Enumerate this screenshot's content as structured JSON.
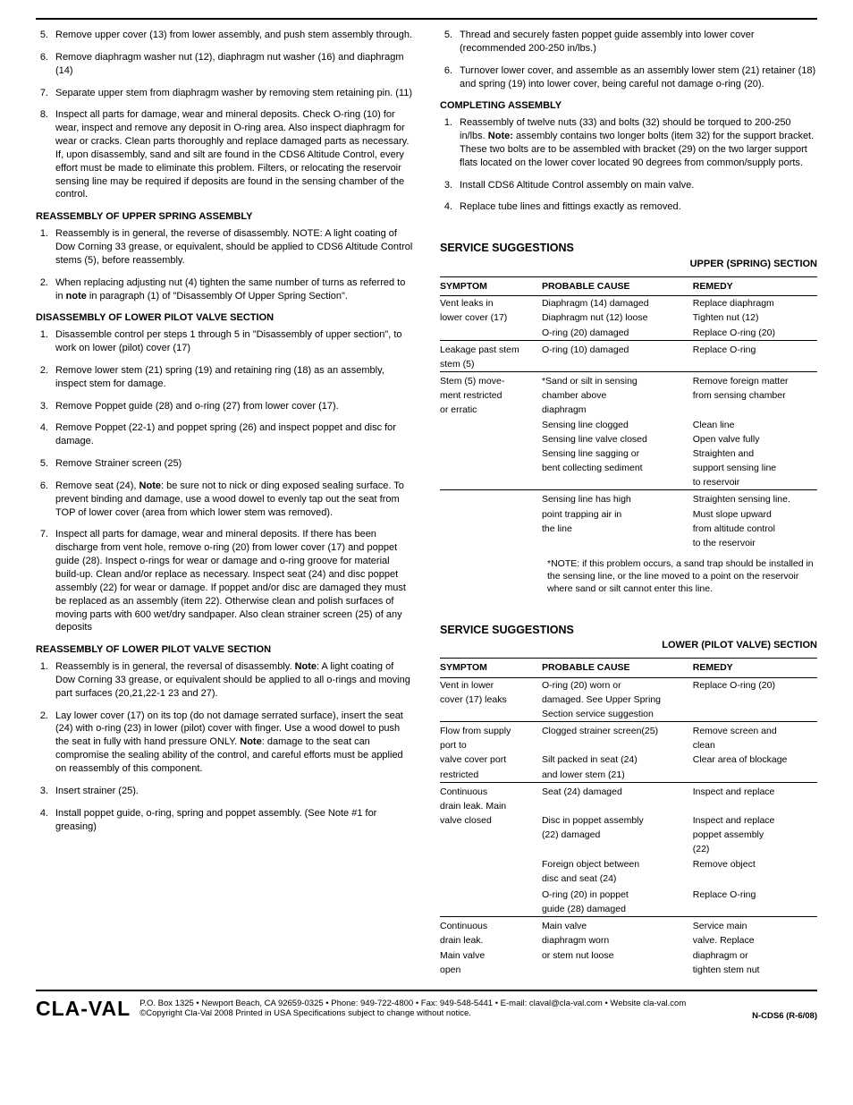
{
  "left": {
    "items1": [
      {
        "n": "5.",
        "t": "Remove upper cover (13) from lower assembly, and push stem assembly through."
      },
      {
        "n": "6.",
        "t": "Remove diaphragm washer nut (12), diaphragm nut washer (16) and diaphragm (14)"
      },
      {
        "n": "7.",
        "t": "Separate upper stem from diaphragm washer by removing stem retaining pin. (11)"
      },
      {
        "n": "8.",
        "t": "Inspect all parts for damage, wear and mineral deposits.\nCheck O-ring (10) for wear, inspect and remove any deposit in O-ring area. Also inspect diaphragm for wear or cracks. Clean parts thoroughly and replace damaged parts as necessary. If, upon disassembly, sand and silt are found in the CDS6 Altitude Control, every effort must be made to eliminate this problem. Filters, or relocating the reservoir sensing line may be required if deposits are found in the sensing chamber of the control."
      }
    ],
    "h1": "REASSEMBLY OF UPPER SPRING ASSEMBLY",
    "items2": [
      {
        "n": "1.",
        "t": "Reassembly is in general, the reverse of disassembly. NOTE: A light coating of Dow Corning 33 grease, or equivalent, should be applied to CDS6 Altitude Control stems (5), before reassembly."
      },
      {
        "n": "2.",
        "pre": "When replacing adjusting nut (4) tighten the same number of turns as referred to in ",
        "bold": "note",
        "post": " in paragraph (1) of \"Disassembly Of Upper Spring Section\"."
      }
    ],
    "h2": "DISASSEMBLY OF LOWER PILOT VALVE SECTION",
    "items3": [
      {
        "n": "1.",
        "t": "Disassemble control per steps 1 through 5 in \"Disassembly of upper section\", to work on lower (pilot) cover (17)"
      },
      {
        "n": "2.",
        "t": "Remove lower stem (21) spring (19) and retaining ring (18) as an assembly, inspect stem for damage."
      },
      {
        "n": "3.",
        "t": "Remove Poppet guide (28) and o-ring (27) from lower cover (17)."
      },
      {
        "n": "4.",
        "t": "Remove Poppet (22-1) and poppet spring (26) and inspect poppet and disc for damage."
      },
      {
        "n": "5.",
        "t": "Remove Strainer screen (25)"
      },
      {
        "n": "6.",
        "pre": "Remove seat (24), ",
        "bold": "Note",
        "post": ": be sure not to nick or ding exposed sealing surface. To prevent binding and damage, use a wood dowel to evenly tap out the seat from TOP of lower cover (area from which lower stem was removed)."
      },
      {
        "n": "7.",
        "t": "Inspect all parts for damage, wear and mineral deposits. If there has been discharge from vent hole, remove o-ring (20) from lower cover (17) and poppet guide (28).  Inspect o-rings for wear or damage and o-ring groove for material build-up.  Clean and/or replace as necessary. Inspect seat (24) and disc poppet assembly (22) for wear or damage.  If poppet and/or disc are damaged they must be replaced as an assembly (item 22). Otherwise clean and polish surfaces of moving parts with 600 wet/dry sandpaper. Also clean strainer screen (25) of any deposits"
      }
    ],
    "h3": "REASSEMBLY OF LOWER PILOT VALVE SECTION",
    "items4": [
      {
        "n": "1.",
        "pre": "Reassembly is in general, the reversal of disassembly. ",
        "bold": "Note",
        "post": ": A light coating of Dow Corning 33 grease, or equivalent should be applied to all o-rings and moving part surfaces (20,21,22-1 23 and 27)."
      },
      {
        "n": "2.",
        "pre": "Lay lower cover (17) on its top (do not damage serrated surface), insert the seat (24) with o-ring (23) in lower (pilot) cover with finger. Use a wood dowel to push the seat in fully with hand pressure ONLY.  ",
        "bold": "Note",
        "post": ": damage to the seat can compromise the sealing ability of the control, and careful efforts must be applied on reassembly of this component."
      },
      {
        "n": "3.",
        "t": "Insert strainer (25)."
      },
      {
        "n": "4.",
        "t": "Install poppet guide, o-ring, spring and poppet assembly.\n(See Note #1 for greasing)"
      }
    ]
  },
  "right": {
    "items1": [
      {
        "n": "5.",
        "t": "Thread and securely fasten poppet guide assembly into lower cover (recommended 200-250 in/lbs.)"
      },
      {
        "n": "6.",
        "t": "Turnover lower cover, and assemble as an assembly lower stem (21) retainer (18) and spring (19) into lower cover, being careful not damage o-ring (20)."
      }
    ],
    "h1": "COMPLETING ASSEMBLY",
    "items2": [
      {
        "n": "1.",
        "pre": "Reassembly of twelve nuts (33)  and bolts (32) should be torqued to 200-250 in/lbs.  ",
        "bold": "Note:",
        "post": " assembly contains two longer bolts (item 32) for the support bracket. These two bolts are to be assembled with bracket (29) on the two larger support flats located on the lower cover located 90 degrees from common/supply ports."
      },
      {
        "n": "3.",
        "t": "Install CDS6 Altitude Control assembly on main valve."
      },
      {
        "n": "4.",
        "t": "Replace tube lines and fittings exactly as removed."
      }
    ],
    "svc1": {
      "title": "SERVICE SUGGESTIONS",
      "sub": "UPPER (SPRING) SECTION",
      "cols": [
        "SYMPTOM",
        "PROBABLE CAUSE",
        "REMEDY"
      ],
      "rows": [
        {
          "s": "Vent  leaks in",
          "c": "Diaphragm (14) damaged",
          "r": "Replace diaphragm"
        },
        {
          "s": "lower cover (17)",
          "c": "Diaphragm nut (12) loose",
          "r": "Tighten nut (12)"
        },
        {
          "s": "",
          "c": "O-ring (20) damaged",
          "r": "Replace O-ring (20)"
        },
        {
          "sep": true,
          "s": "Leakage past stem",
          "c": "O-ring (10) damaged",
          "r": "Replace O-ring"
        },
        {
          "s": "stem (5)",
          "c": "",
          "r": ""
        },
        {
          "sep": true,
          "s": "Stem (5) move-",
          "c": "*Sand or silt in sensing",
          "r": "Remove foreign matter"
        },
        {
          "s": "ment restricted",
          "c": "chamber above",
          "r": "from sensing chamber"
        },
        {
          "s": "or erratic",
          "c": "diaphragm",
          "r": ""
        },
        {
          "s": "",
          "c": "Sensing line clogged",
          "r": "Clean line"
        },
        {
          "s": "",
          "c": "Sensing line valve closed",
          "r": "Open valve fully"
        },
        {
          "s": "",
          "c": "Sensing line sagging or",
          "r": "Straighten and"
        },
        {
          "s": "",
          "c": "bent collecting sediment",
          "r": "support sensing line"
        },
        {
          "s": "",
          "c": "",
          "r": "to reservoir"
        },
        {
          "sep": true,
          "s": "",
          "c": "Sensing line has high",
          "r": "Straighten sensing line."
        },
        {
          "s": "",
          "c": "point trapping air in",
          "r": "Must slope upward"
        },
        {
          "s": "",
          "c": "the line",
          "r": "from altitude control"
        },
        {
          "s": "",
          "c": "",
          "r": "to the reservoir"
        }
      ],
      "note": "*NOTE: if this problem occurs, a sand trap should be installed in the sensing line, or the line moved to a point on the reservoir where sand or silt cannot enter this line."
    },
    "svc2": {
      "title": "SERVICE SUGGESTIONS",
      "sub": "LOWER (PILOT VALVE) SECTION",
      "cols": [
        "SYMPTOM",
        "PROBABLE CAUSE",
        "REMEDY"
      ],
      "rows": [
        {
          "s": "Vent in lower",
          "c": "O-ring (20) worn or",
          "r": "Replace O-ring (20)"
        },
        {
          "s": "cover (17) leaks",
          "c": "damaged. See Upper Spring",
          "r": ""
        },
        {
          "s": "",
          "c": "Section service suggestion",
          "r": ""
        },
        {
          "sep": true,
          "s": "Flow from supply",
          "c": "Clogged strainer screen(25)",
          "r": "Remove screen and"
        },
        {
          "s": "port to",
          "c": "",
          "r": "clean"
        },
        {
          "s": "valve cover port",
          "c": "Silt packed in seat (24)",
          "r": "Clear area of blockage"
        },
        {
          "s": "restricted",
          "c": "and lower stem (21)",
          "r": ""
        },
        {
          "sep": true,
          "s": "Continuous",
          "c": "Seat (24) damaged",
          "r": "Inspect and replace"
        },
        {
          "s": "drain leak. Main",
          "c": "",
          "r": ""
        },
        {
          "s": "valve closed",
          "c": "Disc in poppet assembly",
          "r": "Inspect and replace"
        },
        {
          "s": "",
          "c": "(22) damaged",
          "r": "poppet assembly"
        },
        {
          "s": "",
          "c": "",
          "r": "(22)"
        },
        {
          "s": "",
          "c": "Foreign object between",
          "r": "Remove object"
        },
        {
          "s": "",
          "c": "disc and seat (24)",
          "r": ""
        },
        {
          "s": "",
          "c": "",
          "r": ""
        },
        {
          "s": "",
          "c": "O-ring (20) in poppet",
          "r": "Replace O-ring"
        },
        {
          "s": "",
          "c": "guide (28) damaged",
          "r": ""
        },
        {
          "sep": true,
          "s": "Continuous",
          "c": "Main valve",
          "r": "Service main"
        },
        {
          "s": "drain leak.",
          "c": "diaphragm worn",
          "r": "valve. Replace"
        },
        {
          "s": "Main valve",
          "c": "or stem nut loose",
          "r": "diaphragm or"
        },
        {
          "s": "open",
          "c": "",
          "r": "tighten stem nut"
        }
      ]
    }
  },
  "footer": {
    "logo": "CLA-VAL",
    "l1": "P.O. Box 1325 • Newport Beach, CA 92659-0325 • Phone: 949-722-4800 • Fax: 949-548-5441 • E-mail: claval@cla-val.com • Website cla-val.com",
    "l2": "©Copyright Cla-Val 2008   Printed in USA   Specifications subject to change without notice.",
    "right": "N-CDS6 (R-6/08)"
  }
}
